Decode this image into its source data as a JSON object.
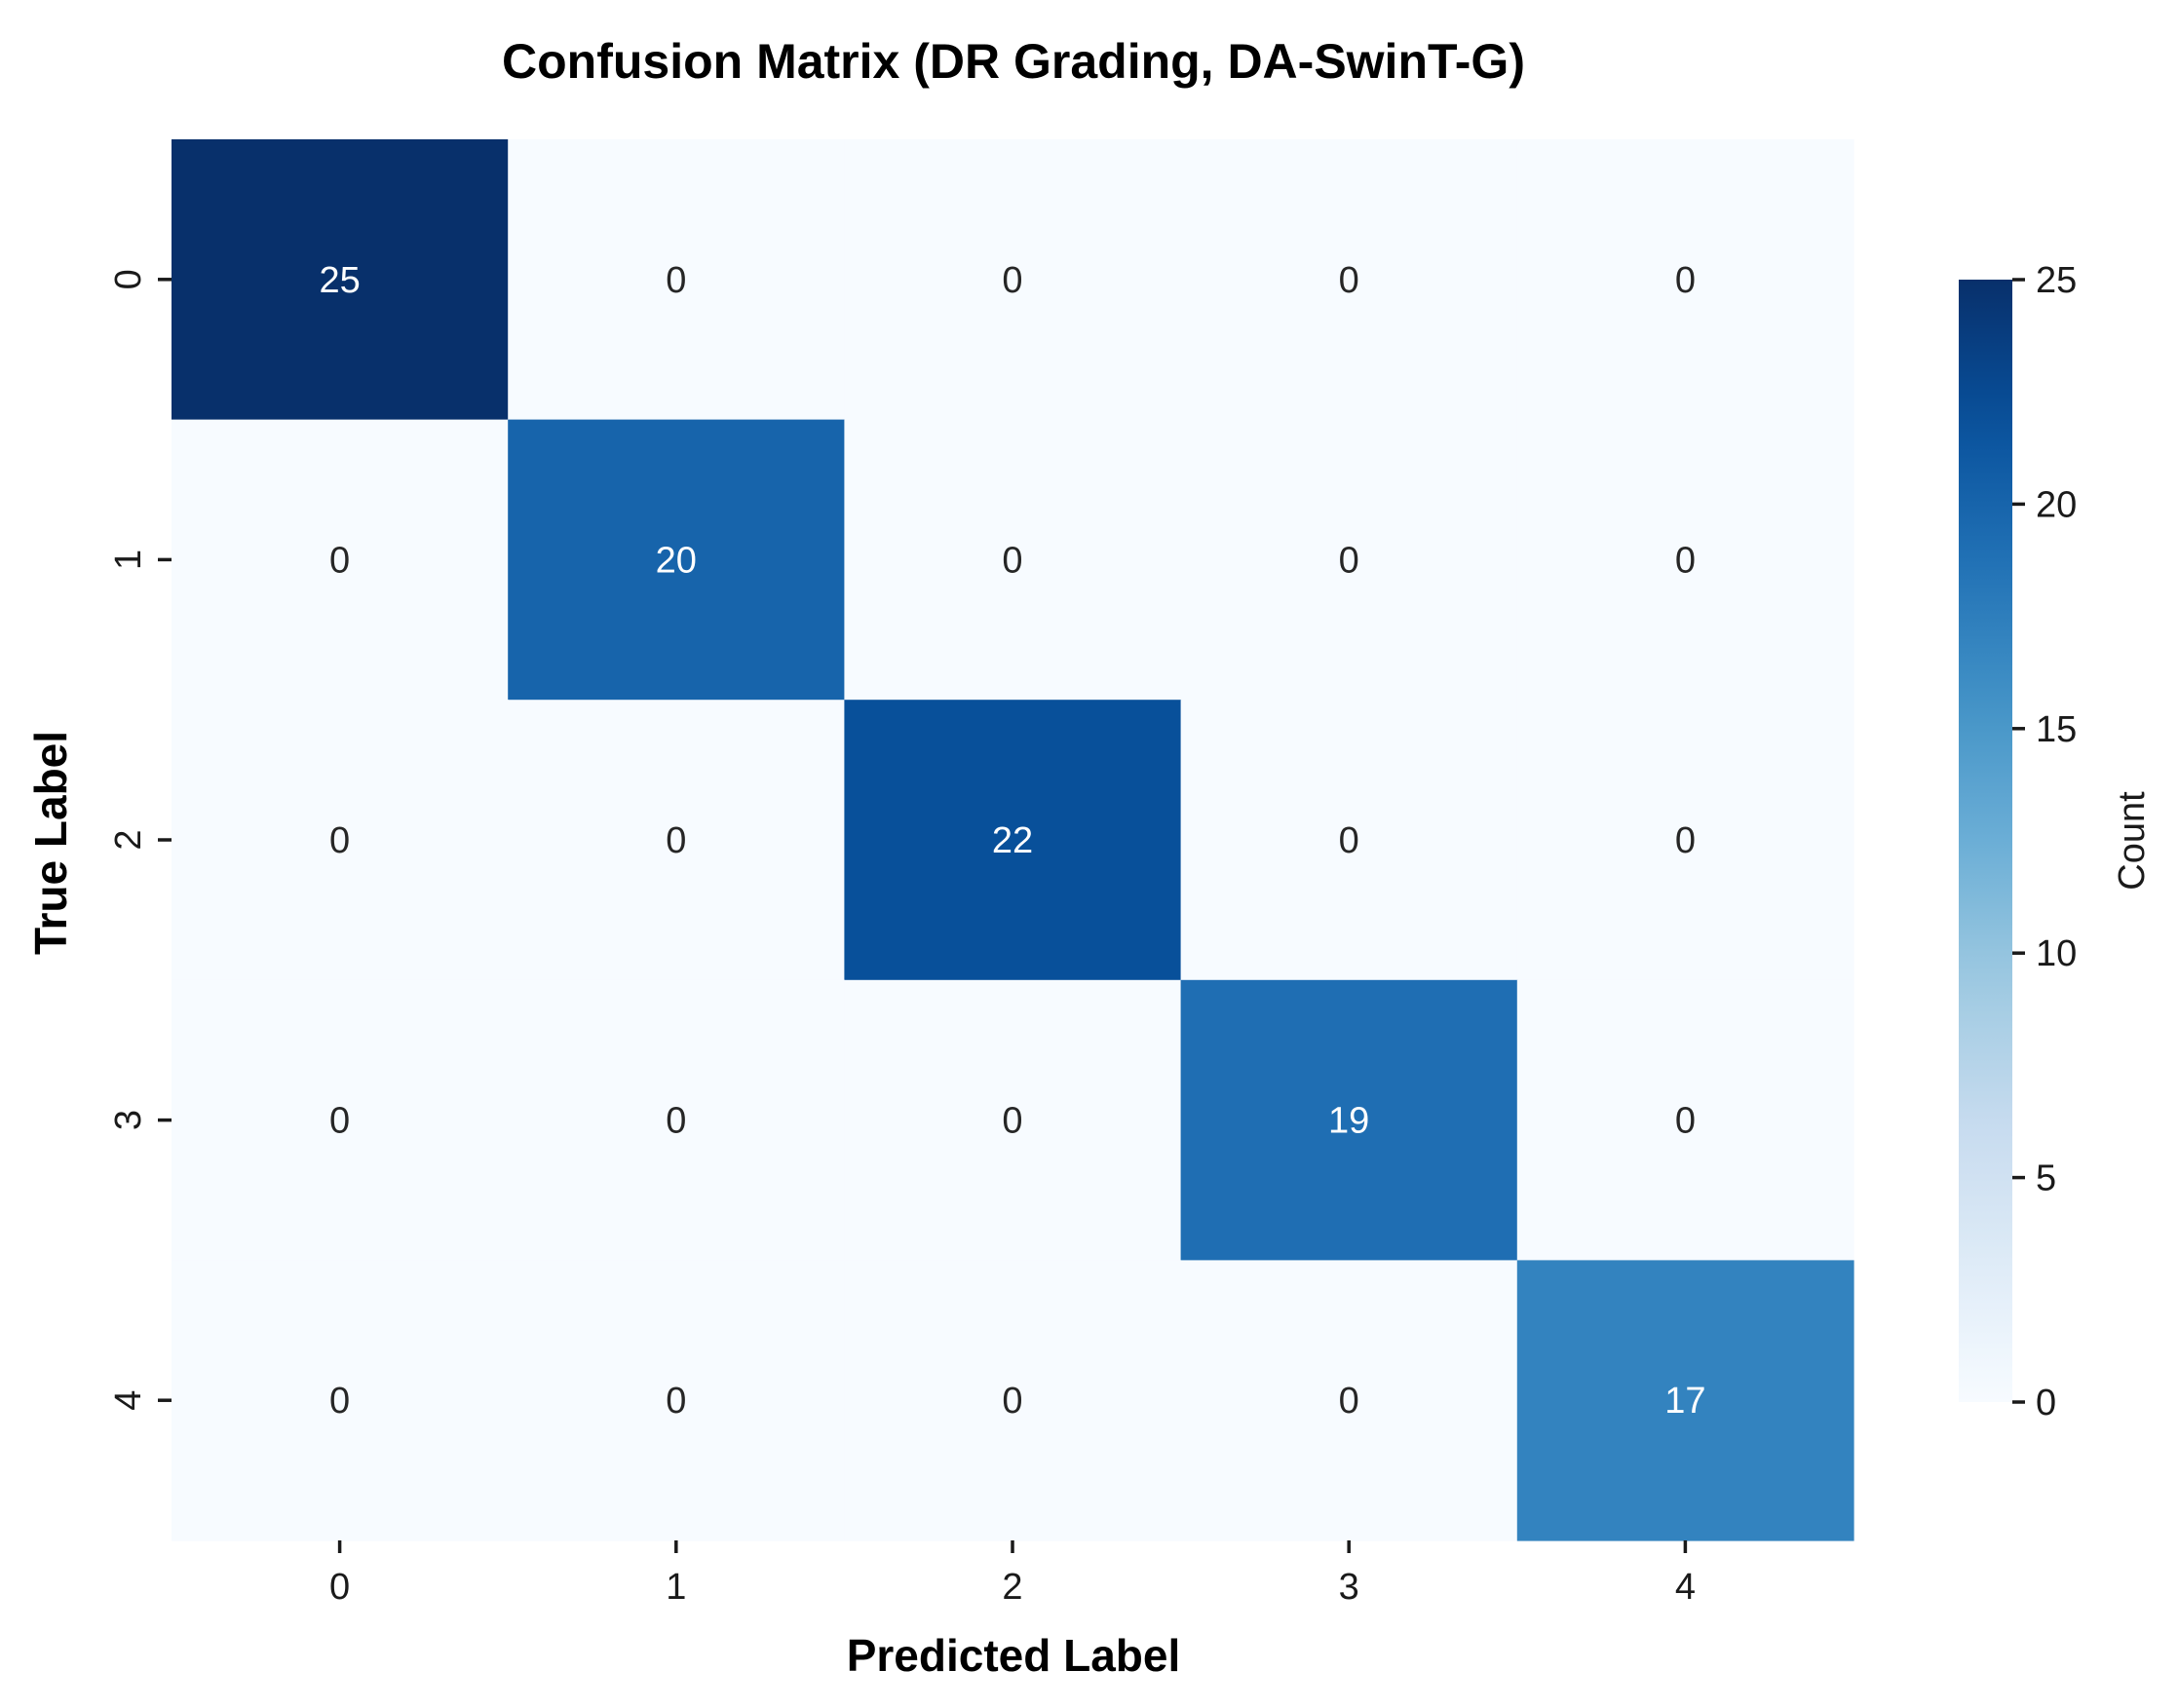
{
  "chart_data": {
    "type": "heatmap",
    "title": "Confusion Matrix (DR Grading, DA-SwinT-G)",
    "xlabel": "Predicted Label",
    "ylabel": "True Label",
    "x_categories": [
      "0",
      "1",
      "2",
      "3",
      "4"
    ],
    "y_categories": [
      "0",
      "1",
      "2",
      "3",
      "4"
    ],
    "values": [
      [
        25,
        0,
        0,
        0,
        0
      ],
      [
        0,
        20,
        0,
        0,
        0
      ],
      [
        0,
        0,
        22,
        0,
        0
      ],
      [
        0,
        0,
        0,
        19,
        0
      ],
      [
        0,
        0,
        0,
        0,
        17
      ]
    ],
    "colorbar": {
      "label": "Count",
      "range": [
        0,
        25
      ],
      "ticks": [
        "0",
        "5",
        "10",
        "15",
        "20",
        "25"
      ]
    },
    "colormap": "Blues",
    "colors": {
      "low": "#f7fbff",
      "high": "#08306b",
      "text_dark": "#262626",
      "text_light": "#ffffff"
    }
  }
}
